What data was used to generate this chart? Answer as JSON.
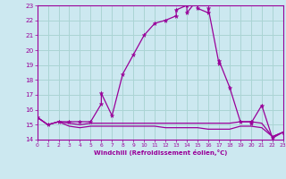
{
  "xlabel": "Windchill (Refroidissement éolien,°C)",
  "xlim": [
    0,
    23
  ],
  "ylim": [
    14,
    23
  ],
  "yticks": [
    14,
    15,
    16,
    17,
    18,
    19,
    20,
    21,
    22,
    23
  ],
  "xticks": [
    0,
    1,
    2,
    3,
    4,
    5,
    6,
    7,
    8,
    9,
    10,
    11,
    12,
    13,
    14,
    15,
    16,
    17,
    18,
    19,
    20,
    21,
    22,
    23
  ],
  "bg_color": "#cce8f0",
  "grid_color": "#aad4d4",
  "line_color": "#990099",
  "line1_x": [
    0,
    1,
    2,
    3,
    4,
    5,
    6,
    6,
    7,
    8,
    9,
    10,
    11,
    12,
    13,
    13,
    14,
    14,
    15,
    15,
    16,
    16,
    17,
    17,
    18,
    19,
    20,
    20,
    21,
    22,
    23
  ],
  "line1_y": [
    15.5,
    15.0,
    15.2,
    15.2,
    15.2,
    15.2,
    16.4,
    17.1,
    15.6,
    18.4,
    19.7,
    21.0,
    21.8,
    22.0,
    22.3,
    22.7,
    23.0,
    22.5,
    23.4,
    22.8,
    22.5,
    22.8,
    19.1,
    19.3,
    17.5,
    15.2,
    15.2,
    15.1,
    16.3,
    14.1,
    14.5
  ],
  "line2_x": [
    0,
    1,
    2,
    3,
    4,
    5,
    6,
    7,
    8,
    9,
    10,
    11,
    12,
    13,
    14,
    15,
    16,
    17,
    18,
    19,
    20,
    21,
    22,
    23
  ],
  "line2_y": [
    15.5,
    15.0,
    15.2,
    15.1,
    15.0,
    15.1,
    15.1,
    15.1,
    15.1,
    15.1,
    15.1,
    15.1,
    15.1,
    15.1,
    15.1,
    15.1,
    15.1,
    15.1,
    15.1,
    15.2,
    15.2,
    15.1,
    14.2,
    14.5
  ],
  "line3_x": [
    0,
    1,
    2,
    3,
    4,
    5,
    6,
    7,
    8,
    9,
    10,
    11,
    12,
    13,
    14,
    15,
    16,
    17,
    18,
    19,
    20,
    21,
    22,
    23
  ],
  "line3_y": [
    15.5,
    15.0,
    15.2,
    14.9,
    14.8,
    14.9,
    14.9,
    14.9,
    14.9,
    14.9,
    14.9,
    14.9,
    14.8,
    14.8,
    14.8,
    14.8,
    14.7,
    14.7,
    14.7,
    14.9,
    14.9,
    14.8,
    14.2,
    14.5
  ]
}
